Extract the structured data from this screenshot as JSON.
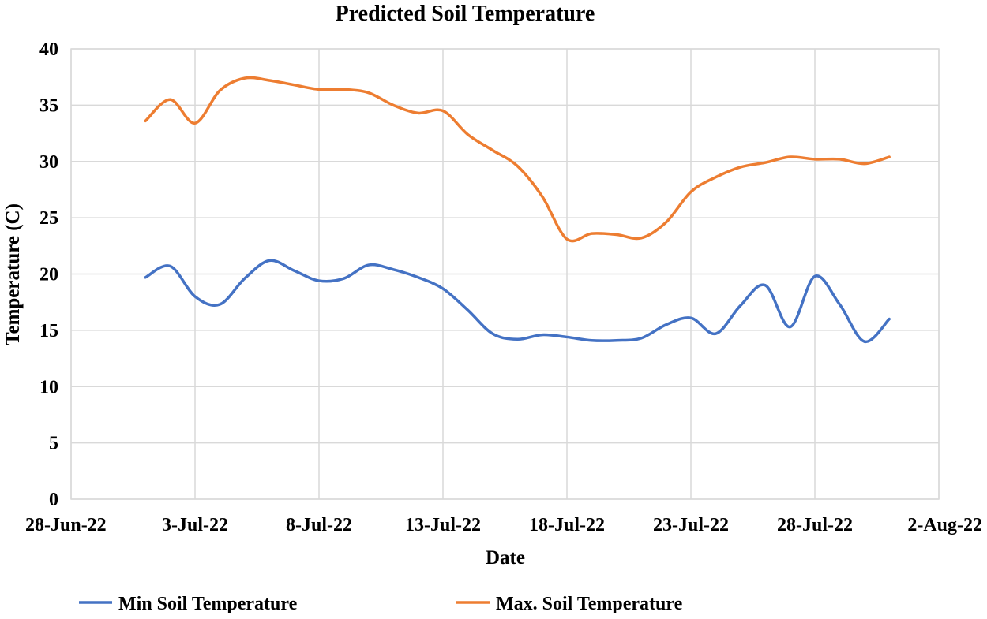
{
  "chart_data": {
    "type": "line",
    "title": "Predicted Soil Temperature",
    "xlabel": "Date",
    "ylabel": "Temperature (C)",
    "ylim": [
      0,
      40
    ],
    "yticks": [
      0,
      5,
      10,
      15,
      20,
      25,
      30,
      35,
      40
    ],
    "x_range_days": [
      0,
      35
    ],
    "x_tick_labels": [
      "28-Jun-22",
      "3-Jul-22",
      "8-Jul-22",
      "13-Jul-22",
      "18-Jul-22",
      "23-Jul-22",
      "28-Jul-22",
      "2-Aug-22"
    ],
    "x_tick_days": [
      0,
      5,
      10,
      15,
      20,
      25,
      30,
      35
    ],
    "grid": true,
    "legend_position": "bottom",
    "series": [
      {
        "name": "Min Soil Temperature",
        "color": "#4472c4",
        "points": [
          [
            3.0,
            19.7
          ],
          [
            4.0,
            20.7
          ],
          [
            5.0,
            18.0
          ],
          [
            6.0,
            17.3
          ],
          [
            7.0,
            19.6
          ],
          [
            8.0,
            21.2
          ],
          [
            9.0,
            20.3
          ],
          [
            10.0,
            19.4
          ],
          [
            11.0,
            19.6
          ],
          [
            12.0,
            20.8
          ],
          [
            13.0,
            20.4
          ],
          [
            14.0,
            19.7
          ],
          [
            15.0,
            18.7
          ],
          [
            16.0,
            16.8
          ],
          [
            17.0,
            14.7
          ],
          [
            18.0,
            14.2
          ],
          [
            19.0,
            14.6
          ],
          [
            20.0,
            14.4
          ],
          [
            21.0,
            14.1
          ],
          [
            22.0,
            14.1
          ],
          [
            23.0,
            14.3
          ],
          [
            24.0,
            15.5
          ],
          [
            25.0,
            16.1
          ],
          [
            26.0,
            14.7
          ],
          [
            27.0,
            17.2
          ],
          [
            28.0,
            19.0
          ],
          [
            29.0,
            15.3
          ],
          [
            30.0,
            19.8
          ],
          [
            31.0,
            17.3
          ],
          [
            32.0,
            14.0
          ],
          [
            33.0,
            16.0
          ]
        ]
      },
      {
        "name": "Max. Soil Temperature",
        "color": "#ed7d31",
        "points": [
          [
            3.0,
            33.6
          ],
          [
            4.0,
            35.5
          ],
          [
            5.0,
            33.4
          ],
          [
            6.0,
            36.3
          ],
          [
            7.0,
            37.4
          ],
          [
            8.0,
            37.2
          ],
          [
            9.0,
            36.8
          ],
          [
            10.0,
            36.4
          ],
          [
            11.0,
            36.4
          ],
          [
            12.0,
            36.1
          ],
          [
            13.0,
            35.0
          ],
          [
            14.0,
            34.3
          ],
          [
            15.0,
            34.5
          ],
          [
            16.0,
            32.4
          ],
          [
            17.0,
            31.0
          ],
          [
            18.0,
            29.6
          ],
          [
            19.0,
            26.9
          ],
          [
            20.0,
            23.1
          ],
          [
            21.0,
            23.6
          ],
          [
            22.0,
            23.5
          ],
          [
            23.0,
            23.2
          ],
          [
            24.0,
            24.6
          ],
          [
            25.0,
            27.3
          ],
          [
            26.0,
            28.6
          ],
          [
            27.0,
            29.5
          ],
          [
            28.0,
            29.9
          ],
          [
            29.0,
            30.4
          ],
          [
            30.0,
            30.2
          ],
          [
            31.0,
            30.2
          ],
          [
            32.0,
            29.8
          ],
          [
            33.0,
            30.4
          ]
        ]
      }
    ]
  }
}
